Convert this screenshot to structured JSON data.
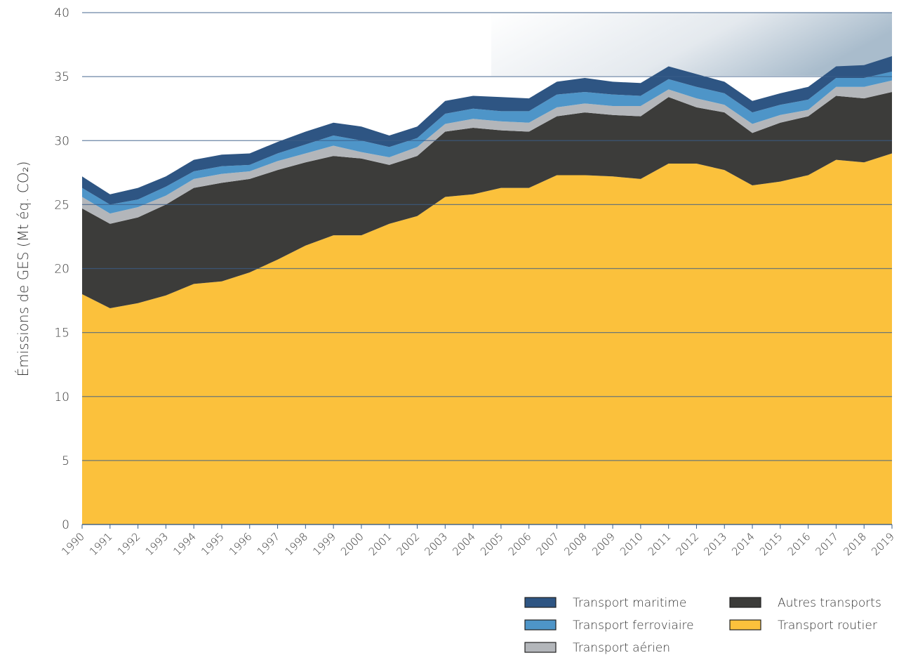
{
  "chart_data": {
    "type": "stacked-area",
    "ylabel": "Émissions de GES (Mt éq. CO₂)",
    "categories": [
      "1990",
      "1991",
      "1992",
      "1993",
      "1994",
      "1995",
      "1996",
      "1997",
      "1998",
      "1999",
      "2000",
      "2001",
      "2002",
      "2003",
      "2004",
      "2005",
      "2006",
      "2007",
      "2008",
      "2009",
      "2010",
      "2011",
      "2012",
      "2013",
      "2014",
      "2015",
      "2016",
      "2017",
      "2018",
      "2019"
    ],
    "series": [
      {
        "name": "Transport routier",
        "color": "#fbc13c",
        "values": [
          18.0,
          16.9,
          17.3,
          17.9,
          18.8,
          19.0,
          19.7,
          20.7,
          21.8,
          22.6,
          22.6,
          23.5,
          24.1,
          25.6,
          25.8,
          26.3,
          26.3,
          27.3,
          27.3,
          27.2,
          27.0,
          28.2,
          28.2,
          27.7,
          26.5,
          26.8,
          27.3,
          28.5,
          28.3,
          29.0
        ]
      },
      {
        "name": "Autres transports",
        "color": "#3c3c3a",
        "values": [
          6.7,
          6.6,
          6.7,
          7.1,
          7.5,
          7.7,
          7.3,
          7.0,
          6.5,
          6.2,
          6.0,
          4.6,
          4.7,
          5.1,
          5.2,
          4.5,
          4.4,
          4.6,
          4.9,
          4.8,
          4.9,
          5.2,
          4.4,
          4.5,
          4.1,
          4.6,
          4.6,
          5.0,
          5.0,
          4.8
        ]
      },
      {
        "name": "Transport aérien",
        "color": "#b3b6ba",
        "values": [
          0.9,
          0.8,
          0.8,
          0.7,
          0.7,
          0.7,
          0.6,
          0.7,
          0.7,
          0.8,
          0.5,
          0.6,
          0.7,
          0.6,
          0.7,
          0.7,
          0.7,
          0.7,
          0.7,
          0.7,
          0.8,
          0.6,
          0.7,
          0.6,
          0.7,
          0.6,
          0.5,
          0.7,
          0.9,
          0.9
        ]
      },
      {
        "name": "Transport ferroviaire",
        "color": "#4e95c8",
        "values": [
          0.7,
          0.7,
          0.6,
          0.7,
          0.6,
          0.6,
          0.5,
          0.6,
          0.7,
          0.8,
          0.9,
          0.8,
          0.7,
          0.8,
          0.8,
          0.8,
          0.9,
          1.0,
          0.9,
          0.9,
          0.8,
          0.8,
          0.9,
          0.9,
          0.9,
          0.8,
          0.8,
          0.7,
          0.7,
          0.7
        ]
      },
      {
        "name": "Transport maritime",
        "color": "#2e5583",
        "values": [
          0.9,
          0.8,
          0.9,
          0.8,
          0.9,
          0.9,
          0.9,
          0.9,
          1.0,
          1.0,
          1.1,
          0.9,
          0.9,
          1.0,
          1.0,
          1.1,
          1.0,
          1.0,
          1.1,
          1.0,
          1.0,
          1.0,
          1.0,
          0.9,
          0.9,
          0.9,
          1.0,
          0.9,
          1.0,
          1.2
        ]
      }
    ],
    "ylim": [
      0,
      40
    ],
    "yticks": [
      0,
      5,
      10,
      15,
      20,
      25,
      30,
      35,
      40
    ],
    "grid": true
  }
}
